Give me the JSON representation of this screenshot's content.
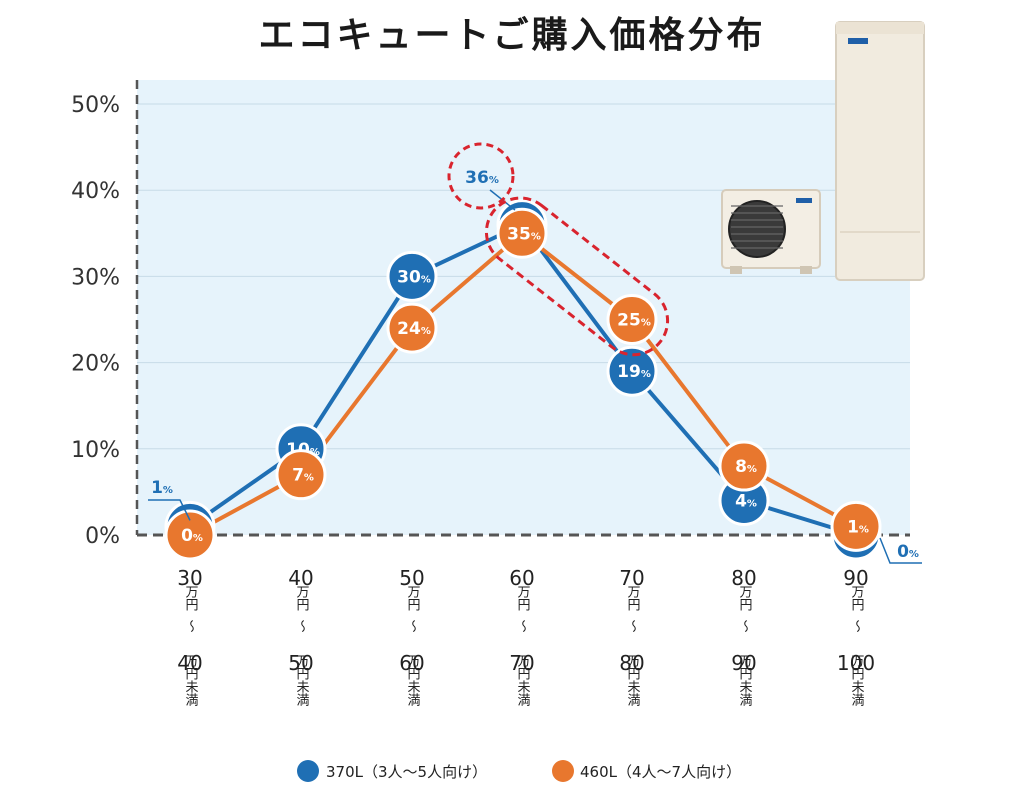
{
  "title": "エコキュートご購入価格分布",
  "chart_data": {
    "type": "line",
    "title": "エコキュートご購入価格分布",
    "categories": [
      {
        "from": "30",
        "to": "40"
      },
      {
        "from": "40",
        "to": "50"
      },
      {
        "from": "50",
        "to": "60"
      },
      {
        "from": "60",
        "to": "70"
      },
      {
        "from": "70",
        "to": "80"
      },
      {
        "from": "80",
        "to": "90"
      },
      {
        "from": "90",
        "to": "100"
      }
    ],
    "unit_labels": {
      "from_unit": "万円",
      "tilde": "〜",
      "to_unit": "万円未満"
    },
    "percent_suffix": "%",
    "series": [
      {
        "name": "370L（3人〜5人向け）",
        "color": "#1f6fb4",
        "values": [
          1,
          10,
          30,
          36,
          19,
          4,
          0
        ]
      },
      {
        "name": "460L（4人〜7人向け）",
        "color": "#e8772e",
        "values": [
          0,
          7,
          24,
          35,
          25,
          8,
          1
        ]
      }
    ],
    "y_ticks": [
      "0%",
      "10%",
      "20%",
      "30%",
      "40%",
      "50%"
    ],
    "ylim": [
      0,
      50
    ],
    "grid": true,
    "legend_position": "bottom",
    "highlight_color": "#d9242e"
  },
  "product_images": {
    "water_tank": "hot-water-storage-tank-icon",
    "outdoor_unit": "heat-pump-outdoor-unit-icon"
  }
}
